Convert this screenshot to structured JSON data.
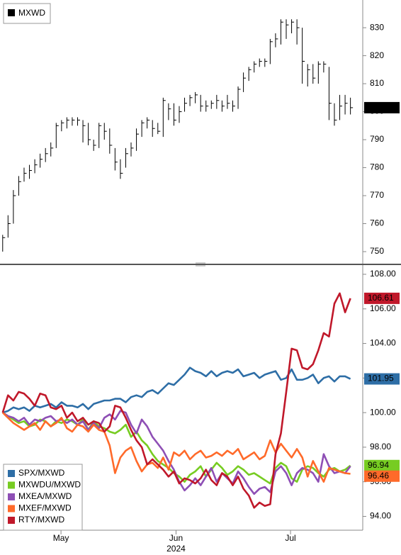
{
  "chart_data": [
    {
      "type": "ohlc",
      "series": [
        {
          "name": "MXWD",
          "color": "#000000",
          "high": [
            756,
            763,
            772,
            777,
            780,
            781,
            783,
            785,
            787,
            789,
            796,
            797,
            798,
            798,
            798,
            797,
            796,
            790,
            796,
            796,
            794,
            787,
            783,
            787,
            789,
            794,
            797,
            798,
            797,
            796,
            805,
            803,
            803,
            802,
            805,
            806,
            807,
            806,
            804,
            804,
            806,
            804,
            806,
            804,
            809,
            814,
            816,
            818,
            819,
            819,
            826,
            828,
            833,
            833,
            833,
            833,
            830,
            817,
            817,
            818,
            818,
            816,
            803,
            806,
            806,
            805
          ],
          "low": [
            750,
            755,
            760,
            770,
            775,
            776,
            778,
            780,
            782,
            784,
            787,
            793,
            794,
            795,
            795,
            789,
            788,
            786,
            787,
            790,
            785,
            779,
            776,
            780,
            784,
            786,
            791,
            794,
            791,
            792,
            791,
            797,
            795,
            796,
            800,
            802,
            803,
            800,
            800,
            801,
            801,
            800,
            801,
            800,
            801,
            807,
            811,
            814,
            816,
            816,
            817,
            823,
            824,
            826,
            828,
            824,
            810,
            809,
            810,
            810,
            814,
            797,
            795,
            797,
            799,
            799
          ],
          "close": [
            755,
            760,
            770,
            775,
            778,
            779,
            781,
            783,
            785,
            787,
            795,
            796,
            797,
            797,
            797,
            795,
            790,
            788,
            795,
            793,
            788,
            782,
            778,
            785,
            787,
            792,
            796,
            797,
            794,
            793,
            804,
            801,
            797,
            800,
            803,
            805,
            806,
            802,
            802,
            803,
            804,
            802,
            803,
            802,
            808,
            812,
            815,
            817,
            818,
            818,
            825,
            826,
            832,
            831,
            832,
            830,
            818,
            815,
            812,
            817,
            817,
            803,
            797,
            802,
            803,
            801.43
          ]
        }
      ],
      "xlim": [
        -0.5,
        67.3
      ],
      "ylim": [
        746.2,
        839.9
      ],
      "yticks": [
        750,
        760,
        770,
        780,
        790,
        800,
        810,
        820,
        830
      ]
    },
    {
      "type": "line",
      "series": [
        {
          "name": "SPX/MXWD",
          "color": "#2e6ea6",
          "values": [
            100.0,
            100.1,
            100.3,
            100.2,
            100.3,
            100.1,
            100.4,
            100.3,
            100.4,
            100.5,
            100.3,
            100.6,
            100.4,
            100.4,
            100.3,
            100.5,
            100.2,
            100.5,
            100.6,
            100.7,
            100.7,
            100.8,
            100.8,
            100.6,
            100.9,
            101.0,
            100.9,
            101.2,
            101.3,
            101.1,
            101.4,
            101.7,
            101.6,
            101.9,
            102.2,
            102.6,
            102.4,
            102.3,
            102.1,
            102.4,
            102.1,
            102.3,
            102.4,
            102.3,
            102.5,
            102.1,
            102.2,
            102.3,
            102.0,
            102.2,
            102.3,
            102.4,
            101.9,
            102.0,
            102.5,
            101.9,
            101.9,
            102.0,
            102.2,
            101.7,
            102.0,
            102.1,
            101.8,
            102.1,
            102.1,
            101.95
          ]
        },
        {
          "name": "MXWDU/MXWD",
          "color": "#77cc22",
          "values": [
            100.0,
            99.8,
            99.6,
            99.4,
            99.5,
            99.2,
            99.3,
            99.6,
            99.5,
            99.2,
            99.5,
            99.4,
            99.6,
            99.5,
            99.3,
            99.6,
            99.0,
            99.5,
            99.2,
            99.1,
            98.9,
            98.8,
            99.0,
            99.3,
            98.6,
            98.9,
            98.4,
            98.1,
            97.6,
            97.2,
            97.0,
            96.8,
            96.5,
            96.3,
            96.0,
            96.4,
            96.6,
            96.9,
            96.3,
            96.7,
            97.1,
            96.8,
            96.4,
            96.6,
            96.9,
            96.7,
            96.4,
            96.5,
            96.3,
            96.1,
            95.9,
            96.8,
            97.1,
            96.9,
            96.2,
            96.0,
            96.7,
            96.9,
            96.8,
            96.5,
            96.3,
            96.7,
            96.8,
            96.6,
            96.7,
            96.94
          ]
        },
        {
          "name": "MXEA/MXWD",
          "color": "#8e4fb5",
          "values": [
            100.0,
            99.8,
            99.7,
            99.5,
            99.7,
            99.3,
            99.6,
            99.5,
            99.7,
            99.8,
            99.5,
            99.6,
            99.4,
            99.6,
            99.3,
            99.5,
            99.0,
            99.4,
            99.1,
            99.7,
            99.9,
            99.6,
            100.1,
            100.0,
            99.3,
            98.8,
            99.6,
            99.2,
            98.6,
            98.2,
            97.8,
            97.2,
            96.7,
            96.0,
            95.5,
            95.8,
            96.2,
            95.8,
            96.3,
            96.8,
            96.0,
            96.5,
            96.2,
            95.9,
            96.6,
            96.2,
            95.7,
            95.3,
            95.6,
            95.7,
            95.4,
            96.6,
            96.9,
            96.5,
            95.8,
            96.5,
            96.8,
            96.7,
            96.5,
            96.0,
            97.6,
            96.9,
            96.5,
            96.6,
            96.5,
            96.9
          ]
        },
        {
          "name": "MXEF/MXWD",
          "color": "#ff6a2a",
          "values": [
            100.0,
            99.7,
            99.4,
            99.2,
            99.0,
            99.2,
            99.4,
            99.0,
            99.5,
            99.2,
            99.4,
            99.7,
            99.1,
            98.9,
            99.3,
            99.2,
            98.9,
            99.3,
            99.0,
            98.9,
            98.1,
            96.5,
            97.4,
            97.8,
            98.0,
            97.2,
            96.6,
            97.0,
            97.1,
            96.8,
            97.4,
            96.7,
            97.7,
            97.5,
            97.8,
            97.3,
            97.6,
            97.8,
            97.4,
            97.5,
            97.7,
            97.5,
            97.8,
            97.6,
            97.9,
            97.3,
            97.5,
            97.7,
            97.3,
            97.5,
            98.4,
            97.7,
            98.2,
            97.8,
            97.4,
            97.9,
            97.4,
            96.3,
            97.2,
            96.6,
            96.0,
            96.8,
            96.7,
            96.6,
            96.5,
            96.46
          ]
        },
        {
          "name": "RTY/MXWD",
          "color": "#c0182a",
          "values": [
            100.0,
            101.0,
            100.7,
            101.2,
            101.1,
            100.8,
            100.4,
            101.1,
            101.0,
            100.3,
            100.2,
            100.4,
            99.7,
            100.0,
            99.5,
            99.7,
            99.3,
            99.5,
            99.4,
            98.9,
            99.2,
            100.4,
            100.3,
            99.7,
            99.0,
            98.4,
            98.0,
            97.0,
            97.3,
            97.0,
            96.7,
            96.3,
            96.6,
            95.9,
            96.2,
            96.1,
            95.9,
            96.2,
            96.7,
            96.1,
            95.8,
            96.5,
            96.3,
            95.8,
            96.3,
            95.6,
            95.2,
            94.5,
            94.8,
            94.6,
            94.7,
            97.6,
            98.8,
            101.2,
            103.7,
            103.6,
            102.6,
            102.5,
            102.8,
            103.6,
            104.6,
            104.4,
            106.3,
            106.9,
            105.8,
            106.61
          ]
        }
      ],
      "xlim": [
        -0.5,
        67.3
      ],
      "ylim": [
        93.2,
        108.45
      ],
      "yticks": [
        {
          "value": 94,
          "label": "94.00"
        },
        {
          "value": 96,
          "label": "96.00"
        },
        {
          "value": 98,
          "label": "98.00"
        },
        {
          "value": 100,
          "label": "100.00"
        },
        {
          "value": 102,
          "label": "102.00"
        },
        {
          "value": 104,
          "label": "104.00"
        },
        {
          "value": 106,
          "label": "106.00"
        },
        {
          "value": 108,
          "label": "108.00"
        }
      ],
      "xticks": [
        {
          "value": 10.9,
          "label": "May"
        },
        {
          "value": 32.4,
          "label": "Jun"
        },
        {
          "value": 53.8,
          "label": "Jul"
        }
      ],
      "x_sublabel": "2024"
    }
  ]
}
